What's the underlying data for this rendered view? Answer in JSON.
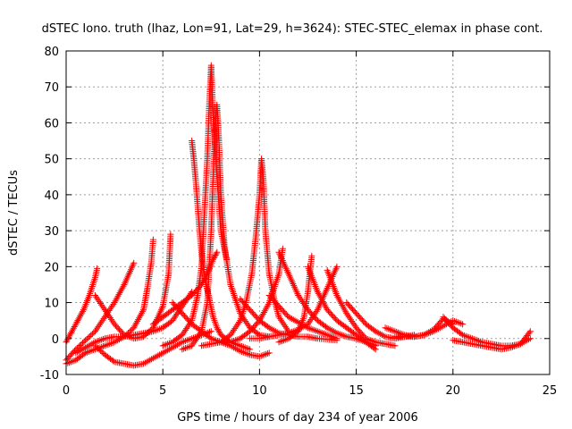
{
  "chart_data": {
    "type": "scatter",
    "title": "dSTEC Iono. truth (lhaz, Lon=91, Lat=29, h=3624): STEC-STEC_elemax in phase cont.",
    "xlabel": "GPS time / hours of day 234 of year 2006",
    "ylabel": "dSTEC  / TECUs",
    "xlim": [
      0,
      25
    ],
    "ylim": [
      -10,
      80
    ],
    "xticks": [
      0,
      5,
      10,
      15,
      20,
      25
    ],
    "yticks": [
      -10,
      0,
      10,
      20,
      30,
      40,
      50,
      60,
      70,
      80
    ],
    "grid": true,
    "marker": "+",
    "color": "#ff0000",
    "series": [
      {
        "x": [
          0.0,
          0.3,
          0.6,
          0.9,
          1.2,
          1.5,
          1.6
        ],
        "y": [
          -1.0,
          2.0,
          5.0,
          8.0,
          12.0,
          17.0,
          19.5
        ]
      },
      {
        "x": [
          0.0,
          0.5,
          1.0,
          1.5,
          2.0,
          2.5,
          3.0,
          3.5
        ],
        "y": [
          -6.0,
          -3.0,
          -0.5,
          2.0,
          6.0,
          10.0,
          15.0,
          21.0
        ]
      },
      {
        "x": [
          0.0,
          0.5,
          1.0,
          1.5,
          2.0,
          2.5,
          3.0,
          3.5,
          4.0,
          4.2,
          4.4,
          4.5
        ],
        "y": [
          -7.0,
          -6.0,
          -4.0,
          -3.0,
          -2.0,
          -1.0,
          0.5,
          3.0,
          8.0,
          14.0,
          21.0,
          27.5
        ]
      },
      {
        "x": [
          1.5,
          2.0,
          2.5,
          3.0,
          3.5,
          4.0,
          4.5,
          5.0,
          5.3,
          5.4
        ],
        "y": [
          12.0,
          8.0,
          4.0,
          1.0,
          0.0,
          0.5,
          3.0,
          9.0,
          18.0,
          29.0
        ]
      },
      {
        "x": [
          0.5,
          1.0,
          1.5,
          2.0,
          2.5,
          3.0,
          3.5,
          4.0,
          4.5,
          5.0,
          5.5,
          6.0,
          6.5
        ],
        "y": [
          -4.0,
          -2.5,
          -1.0,
          0.0,
          0.5,
          0.5,
          1.0,
          1.5,
          2.0,
          3.0,
          5.0,
          9.0,
          13.0
        ]
      },
      {
        "x": [
          1.5,
          2.0,
          2.5,
          3.0,
          3.5,
          4.0,
          4.5,
          5.0,
          5.5,
          6.0,
          6.5,
          7.0,
          7.5
        ],
        "y": [
          -2.0,
          -4.5,
          -6.5,
          -7.0,
          -7.5,
          -7.0,
          -5.5,
          -4.0,
          -2.5,
          -1.0,
          0.0,
          1.0,
          2.0
        ]
      },
      {
        "x": [
          4.5,
          5.0,
          5.5,
          6.0,
          6.5,
          7.0,
          7.3,
          7.6,
          7.8
        ],
        "y": [
          4.0,
          6.0,
          8.0,
          10.0,
          12.0,
          15.0,
          18.0,
          22.0,
          24.0
        ]
      },
      {
        "x": [
          6.5,
          6.6,
          6.7,
          6.8,
          6.9,
          7.0,
          7.2,
          7.4,
          7.6,
          7.8,
          8.0,
          8.5,
          9.0,
          9.5
        ],
        "y": [
          55.0,
          50.0,
          44.0,
          37.0,
          30.0,
          24.0,
          16.0,
          11.0,
          6.0,
          3.0,
          1.0,
          -1.0,
          -2.0,
          -3.0
        ]
      },
      {
        "x": [
          5.0,
          5.5,
          6.0,
          6.5,
          6.8,
          7.0,
          7.1,
          7.2,
          7.3,
          7.4,
          7.5,
          7.6,
          7.8,
          8.0,
          8.3
        ],
        "y": [
          -2.0,
          -1.0,
          1.0,
          5.0,
          12.0,
          20.0,
          30.0,
          40.0,
          50.0,
          65.0,
          76.0,
          62.0,
          45.0,
          30.0,
          22.0
        ]
      },
      {
        "x": [
          6.0,
          6.5,
          7.0,
          7.3,
          7.5,
          7.6,
          7.7,
          7.8,
          7.9,
          8.0,
          8.2,
          8.5,
          9.0,
          9.5,
          10.0,
          10.5
        ],
        "y": [
          -3.0,
          -2.0,
          2.0,
          10.0,
          30.0,
          45.0,
          58.0,
          65.0,
          55.0,
          40.0,
          25.0,
          15.0,
          7.0,
          3.0,
          1.0,
          0.5
        ]
      },
      {
        "x": [
          7.0,
          7.5,
          8.0,
          8.5,
          9.0,
          9.3,
          9.6,
          9.8,
          10.0,
          10.1,
          10.2,
          10.3,
          10.5,
          10.8,
          11.0,
          11.5
        ],
        "y": [
          -2.0,
          -1.5,
          -1.0,
          1.0,
          5.0,
          10.0,
          18.0,
          28.0,
          40.0,
          50.0,
          44.0,
          30.0,
          18.0,
          10.0,
          6.0,
          2.0
        ]
      },
      {
        "x": [
          5.5,
          6.0,
          6.5,
          7.0,
          7.5,
          8.0,
          8.5,
          9.0,
          9.5,
          10.0,
          10.5
        ],
        "y": [
          10.0,
          7.0,
          4.0,
          2.0,
          0.0,
          -1.0,
          -2.0,
          -3.5,
          -4.5,
          -5.0,
          -4.0
        ]
      },
      {
        "x": [
          8.0,
          8.5,
          9.0,
          9.5,
          10.0,
          10.5,
          11.0,
          11.2
        ],
        "y": [
          -1.0,
          -1.0,
          0.0,
          2.0,
          5.0,
          10.0,
          18.0,
          25.0
        ]
      },
      {
        "x": [
          9.0,
          9.5,
          10.0,
          10.5,
          11.0,
          11.5,
          12.0,
          12.5,
          13.0,
          14.0
        ],
        "y": [
          11.0,
          8.0,
          5.0,
          3.0,
          1.5,
          1.0,
          0.5,
          0.5,
          0.0,
          -0.5
        ]
      },
      {
        "x": [
          9.5,
          10.0,
          10.5,
          11.0,
          11.5,
          12.0,
          12.5,
          13.0,
          13.5,
          14.0
        ],
        "y": [
          0.0,
          0.0,
          0.5,
          1.0,
          1.5,
          2.5,
          4.0,
          8.0,
          14.0,
          20.0
        ]
      },
      {
        "x": [
          10.5,
          11.0,
          11.5,
          12.0,
          12.5,
          13.0,
          13.5,
          14.0
        ],
        "y": [
          12.0,
          9.0,
          6.0,
          4.5,
          3.0,
          2.0,
          1.0,
          0.0
        ]
      },
      {
        "x": [
          11.0,
          11.5,
          12.0,
          12.3,
          12.5,
          12.7
        ],
        "y": [
          -1.0,
          0.0,
          2.0,
          6.0,
          13.0,
          23.0
        ]
      },
      {
        "x": [
          11.0,
          11.5,
          12.0,
          12.5,
          13.0,
          13.5,
          14.0,
          14.5,
          15.0,
          15.5,
          16.0
        ],
        "y": [
          24.0,
          18.0,
          12.0,
          8.0,
          5.0,
          3.0,
          1.5,
          0.5,
          0.0,
          -1.0,
          -2.0
        ]
      },
      {
        "x": [
          12.5,
          13.0,
          13.5,
          14.0,
          14.5,
          15.0,
          15.5,
          16.0
        ],
        "y": [
          20.0,
          13.0,
          8.0,
          5.0,
          3.0,
          1.0,
          -1.0,
          -3.0
        ]
      },
      {
        "x": [
          13.5,
          14.0,
          14.5,
          15.0,
          15.5,
          16.0,
          16.5,
          17.0
        ],
        "y": [
          19.0,
          12.0,
          7.0,
          3.0,
          0.0,
          -1.0,
          -1.5,
          -2.0
        ]
      },
      {
        "x": [
          14.5,
          15.0,
          15.5,
          16.0,
          16.5,
          17.0,
          17.5,
          18.0
        ],
        "y": [
          10.0,
          7.0,
          4.0,
          2.0,
          0.5,
          0.0,
          0.5,
          1.0
        ]
      },
      {
        "x": [
          16.5,
          17.0,
          17.5,
          18.0,
          18.5,
          19.0,
          19.5,
          20.0
        ],
        "y": [
          3.0,
          2.0,
          1.0,
          0.5,
          1.0,
          2.5,
          5.5,
          4.0
        ]
      },
      {
        "x": [
          17.0,
          17.5,
          18.0,
          18.5,
          19.0,
          19.5,
          20.0,
          20.5
        ],
        "y": [
          0.5,
          0.5,
          0.5,
          1.0,
          2.0,
          3.5,
          5.0,
          4.0
        ]
      },
      {
        "x": [
          19.5,
          20.0,
          20.5,
          21.0,
          21.5,
          22.0,
          22.5,
          23.0,
          23.5,
          24.0
        ],
        "y": [
          6.0,
          3.0,
          1.0,
          0.0,
          -1.0,
          -1.5,
          -2.0,
          -2.0,
          -1.5,
          2.0
        ]
      },
      {
        "x": [
          20.0,
          20.5,
          21.0,
          21.5,
          22.0,
          22.5,
          23.0,
          23.5,
          24.0
        ],
        "y": [
          -0.5,
          -1.0,
          -1.5,
          -2.0,
          -2.5,
          -3.0,
          -2.5,
          -1.5,
          0.0
        ]
      }
    ]
  }
}
